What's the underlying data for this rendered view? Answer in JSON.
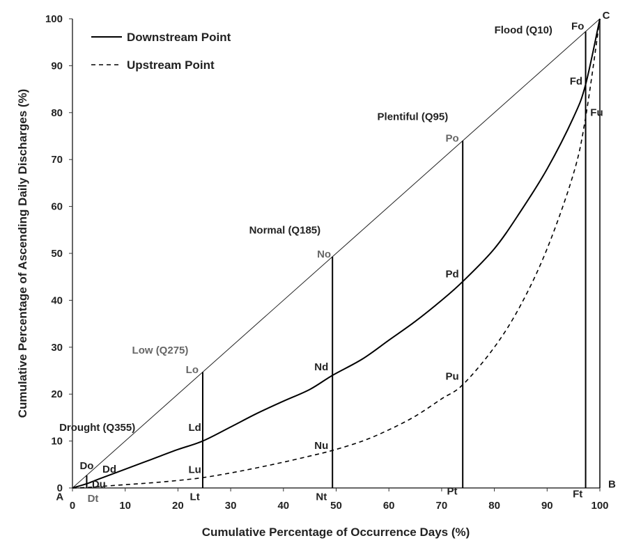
{
  "chart_data": {
    "type": "line",
    "xlabel": "Cumulative Percentage of Occurrence Days (%)",
    "ylabel": "Cumulative Percentage of Ascending Daily Discharges (%)",
    "xlim": [
      0,
      100
    ],
    "ylim": [
      0,
      100
    ],
    "x_ticks": [
      "0",
      "10",
      "20",
      "30",
      "40",
      "50",
      "60",
      "70",
      "80",
      "90",
      "100"
    ],
    "y_ticks": [
      "0",
      "10",
      "20",
      "30",
      "40",
      "50",
      "60",
      "70",
      "80",
      "90",
      "100"
    ],
    "grid": "none",
    "legend_position": "top-left",
    "series": [
      {
        "name": "Downstream Point",
        "style": "solid",
        "x": [
          0,
          2.7,
          5,
          10,
          15,
          20,
          24.7,
          30,
          35,
          40,
          45,
          49.3,
          55,
          60,
          65,
          70,
          74.0,
          80,
          85,
          90,
          95,
          97.3,
          100
        ],
        "y": [
          0,
          0.9,
          1.9,
          4.0,
          6.1,
          8.2,
          10.0,
          13.0,
          15.9,
          18.5,
          21.0,
          24.0,
          27.5,
          31.5,
          35.5,
          40.0,
          44.0,
          51.0,
          59.0,
          68.0,
          79.0,
          86.0,
          100
        ]
      },
      {
        "name": "Upstream Point",
        "style": "dashed",
        "x": [
          0,
          2.7,
          5,
          10,
          15,
          20,
          24.7,
          30,
          35,
          40,
          45,
          49.3,
          55,
          60,
          65,
          70,
          74.0,
          80,
          85,
          90,
          95,
          97.3,
          100
        ],
        "y": [
          0,
          0.1,
          0.3,
          0.7,
          1.1,
          1.6,
          2.2,
          3.2,
          4.3,
          5.5,
          6.8,
          8.0,
          10.0,
          12.4,
          15.3,
          19.0,
          22.0,
          30.0,
          39.0,
          51.0,
          67.0,
          79.0,
          100
        ]
      }
    ],
    "diagonal": {
      "x": [
        0,
        100
      ],
      "y": [
        0,
        100
      ]
    },
    "verticals": [
      {
        "name": "drought",
        "x": 2.7,
        "y_top": 2.7
      },
      {
        "name": "low",
        "x": 24.7,
        "y_top": 24.7
      },
      {
        "name": "normal",
        "x": 49.3,
        "y_top": 49.3
      },
      {
        "name": "plentiful",
        "x": 74.0,
        "y_top": 74.0
      },
      {
        "name": "flood",
        "x": 97.3,
        "y_top": 97.3
      },
      {
        "name": "boundary",
        "x": 100,
        "y_top": 100
      }
    ],
    "annotations": [
      {
        "text": "Drought (Q355)",
        "x": -2.5,
        "y": 12.2,
        "anchor": "start",
        "color": "#222222"
      },
      {
        "text": "Low (Q275)",
        "x": 11.3,
        "y": 28.6,
        "anchor": "start",
        "color": "#666666"
      },
      {
        "text": "Normal (Q185)",
        "x": 33.5,
        "y": 54.2,
        "anchor": "start",
        "color": "#222222"
      },
      {
        "text": "Plentiful (Q95)",
        "x": 57.8,
        "y": 78.4,
        "anchor": "start",
        "color": "#222222"
      },
      {
        "text": "Flood (Q10)",
        "x": 80.0,
        "y": 96.9,
        "anchor": "start",
        "color": "#222222"
      },
      {
        "text": "A",
        "x": -2.4,
        "y": -2.6,
        "anchor": "middle",
        "color": "#222222"
      },
      {
        "text": "B",
        "x": 102.3,
        "y": 0.1,
        "anchor": "middle",
        "color": "#222222"
      },
      {
        "text": "C",
        "x": 101.2,
        "y": 100,
        "anchor": "middle",
        "color": "#222222"
      },
      {
        "text": "Do",
        "x": 2.7,
        "y": 4.0,
        "anchor": "middle",
        "color": "#222222"
      },
      {
        "text": "Dd",
        "x": 7.0,
        "y": 3.3,
        "anchor": "middle",
        "color": "#222222"
      },
      {
        "text": "Du",
        "x": 5.0,
        "y": 0.1,
        "anchor": "middle",
        "color": "#222222"
      },
      {
        "text": "Dt",
        "x": 3.9,
        "y": -3.0,
        "anchor": "middle",
        "color": "#666666"
      },
      {
        "text": "Lo",
        "x": 22.7,
        "y": 24.5,
        "anchor": "middle",
        "color": "#666666"
      },
      {
        "text": "Ld",
        "x": 23.2,
        "y": 12.2,
        "anchor": "middle",
        "color": "#222222"
      },
      {
        "text": "Lu",
        "x": 23.2,
        "y": 3.2,
        "anchor": "middle",
        "color": "#222222"
      },
      {
        "text": "Lt",
        "x": 23.2,
        "y": -2.6,
        "anchor": "middle",
        "color": "#222222"
      },
      {
        "text": "No",
        "x": 47.7,
        "y": 49.1,
        "anchor": "middle",
        "color": "#666666"
      },
      {
        "text": "Nd",
        "x": 47.2,
        "y": 25.1,
        "anchor": "middle",
        "color": "#222222"
      },
      {
        "text": "Nu",
        "x": 47.2,
        "y": 8.3,
        "anchor": "middle",
        "color": "#222222"
      },
      {
        "text": "Nt",
        "x": 47.2,
        "y": -2.6,
        "anchor": "middle",
        "color": "#222222"
      },
      {
        "text": "Po",
        "x": 72.0,
        "y": 73.8,
        "anchor": "middle",
        "color": "#666666"
      },
      {
        "text": "Pd",
        "x": 72.0,
        "y": 44.9,
        "anchor": "middle",
        "color": "#222222"
      },
      {
        "text": "Pu",
        "x": 72.0,
        "y": 23.1,
        "anchor": "middle",
        "color": "#222222"
      },
      {
        "text": "Pt",
        "x": 72.0,
        "y": -1.4,
        "anchor": "middle",
        "color": "#222222"
      },
      {
        "text": "Fo",
        "x": 95.8,
        "y": 97.7,
        "anchor": "middle",
        "color": "#222222"
      },
      {
        "text": "Fd",
        "x": 95.5,
        "y": 86.0,
        "anchor": "middle",
        "color": "#222222"
      },
      {
        "text": "Fu",
        "x": 99.4,
        "y": 79.3,
        "anchor": "middle",
        "color": "#222222"
      },
      {
        "text": "Ft",
        "x": 95.8,
        "y": -2.0,
        "anchor": "middle",
        "color": "#222222"
      }
    ]
  },
  "colors": {
    "line": "#000000",
    "diagonal": "#222222",
    "text": "#222222",
    "muted_text": "#666666",
    "axis": "#333333"
  }
}
